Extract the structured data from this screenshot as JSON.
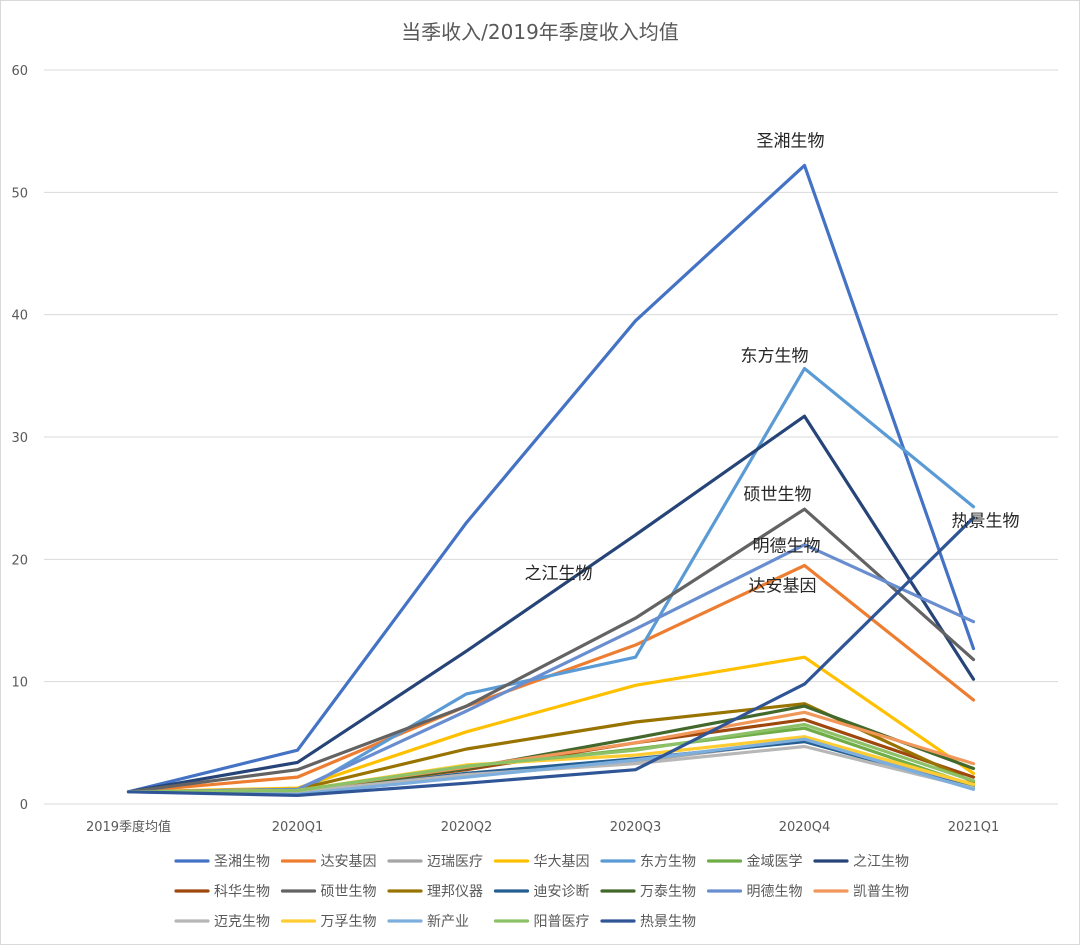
{
  "chart_data": {
    "type": "line",
    "title": "当季收入/2019年季度收入均值",
    "xlabel": "",
    "ylabel": "",
    "categories": [
      "2019季度均值",
      "2020Q1",
      "2020Q2",
      "2020Q3",
      "2020Q4",
      "2021Q1"
    ],
    "ylim": [
      0,
      60
    ],
    "yticks": [
      0,
      10,
      20,
      30,
      40,
      50,
      60
    ],
    "grid": "horizontal",
    "legend_position": "bottom",
    "series": [
      {
        "name": "圣湘生物",
        "color": "#4472C4",
        "values": [
          1,
          4.4,
          23,
          39.5,
          52.2,
          12.7
        ]
      },
      {
        "name": "达安基因",
        "color": "#ED7D31",
        "values": [
          1,
          2.2,
          8,
          13,
          19.5,
          8.5
        ]
      },
      {
        "name": "迈瑞医疗",
        "color": "#A5A5A5",
        "values": [
          1,
          1,
          2.5,
          3.5,
          5.2,
          1.5
        ]
      },
      {
        "name": "华大基因",
        "color": "#FFC000",
        "values": [
          1,
          1.3,
          5.9,
          9.7,
          12,
          2.5
        ]
      },
      {
        "name": "东方生物",
        "color": "#5B9BD5",
        "values": [
          1,
          0.9,
          9,
          12,
          35.6,
          24.3
        ]
      },
      {
        "name": "金域医学",
        "color": "#70AD47",
        "values": [
          1,
          1,
          3,
          4.5,
          6.2,
          1.5
        ]
      },
      {
        "name": "之江生物",
        "color": "#264478",
        "values": [
          1,
          3.4,
          12.5,
          22,
          31.7,
          10.2
        ]
      },
      {
        "name": "科华生物",
        "color": "#9E480E",
        "values": [
          1,
          1.1,
          2.8,
          5,
          6.9,
          2.2
        ]
      },
      {
        "name": "硕世生物",
        "color": "#636363",
        "values": [
          1,
          2.8,
          8,
          15.2,
          24.1,
          11.8
        ]
      },
      {
        "name": "理邦仪器",
        "color": "#997300",
        "values": [
          1,
          1.2,
          4.5,
          6.7,
          8.2,
          1.8
        ]
      },
      {
        "name": "迪安诊断",
        "color": "#255E91",
        "values": [
          1,
          0.9,
          2.5,
          3.7,
          5.1,
          1.3
        ]
      },
      {
        "name": "万泰生物",
        "color": "#43682B",
        "values": [
          1,
          1,
          2.9,
          5.4,
          8,
          2.9
        ]
      },
      {
        "name": "明德生物",
        "color": "#698ED0",
        "values": [
          1,
          1.2,
          7.6,
          14.3,
          21.2,
          14.9
        ]
      },
      {
        "name": "凯普生物",
        "color": "#F1975A",
        "values": [
          1,
          1.1,
          3,
          5,
          7.5,
          3.3
        ]
      },
      {
        "name": "迈克生物",
        "color": "#B7B7B7",
        "values": [
          1,
          1,
          2.4,
          3.3,
          4.7,
          1.3
        ]
      },
      {
        "name": "万孚生物",
        "color": "#FFCD33",
        "values": [
          1,
          1.1,
          3.2,
          4,
          5.5,
          1.6
        ]
      },
      {
        "name": "新产业",
        "color": "#7CAFDD",
        "values": [
          1,
          0.8,
          2.2,
          3.6,
          5.3,
          1.2
        ]
      },
      {
        "name": "阳普医疗",
        "color": "#8CC168",
        "values": [
          1,
          1.1,
          3.1,
          4.4,
          6.5,
          1.9
        ]
      },
      {
        "name": "热景生物",
        "color": "#2F5597",
        "values": [
          1,
          0.7,
          1.7,
          2.8,
          9.8,
          23.4
        ]
      }
    ],
    "annotations": [
      {
        "text": "圣湘生物",
        "series": "圣湘生物",
        "at": "2020Q4"
      },
      {
        "text": "东方生物",
        "series": "东方生物",
        "at": "2020Q4"
      },
      {
        "text": "硕世生物",
        "series": "硕世生物",
        "at": "2020Q4"
      },
      {
        "text": "明德生物",
        "series": "明德生物",
        "at": "2020Q4"
      },
      {
        "text": "达安基因",
        "series": "达安基因",
        "at": "2020Q4"
      },
      {
        "text": "之江生物",
        "series": "之江生物",
        "at": "2020Q2"
      },
      {
        "text": "热景生物",
        "series": "热景生物",
        "at": "2021Q1"
      }
    ]
  }
}
